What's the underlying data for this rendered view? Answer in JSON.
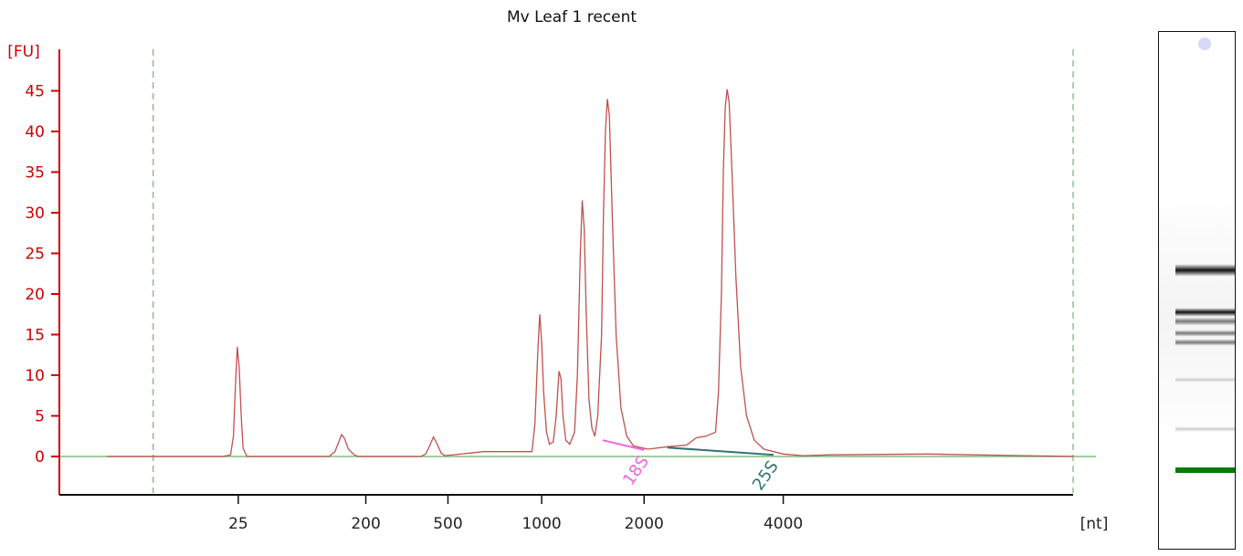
{
  "chart_data": {
    "type": "line",
    "title": "Mv Leaf 1 recent",
    "ylabel": "[FU]",
    "xlabel": "[nt]",
    "ylim": [
      -5,
      49
    ],
    "yticks": [
      0,
      5,
      10,
      15,
      20,
      25,
      30,
      35,
      40,
      45
    ],
    "xticks": [
      {
        "label": "25",
        "frac": 0.136
      },
      {
        "label": "200",
        "frac": 0.268
      },
      {
        "label": "500",
        "frac": 0.353
      },
      {
        "label": "1000",
        "frac": 0.45
      },
      {
        "label": "2000",
        "frac": 0.556
      },
      {
        "label": "4000",
        "frac": 0.7
      }
    ],
    "grid": false,
    "markers": [
      {
        "name": "lower-marker",
        "frac": 0.048
      },
      {
        "name": "upper-marker",
        "frac": 1.0
      }
    ],
    "annotations": [
      {
        "label": "18S",
        "color": "#ee66dd",
        "start_frac": 0.513,
        "end_frac": 0.556,
        "y_start": 2.0,
        "y_end": 0.8
      },
      {
        "label": "25S",
        "color": "#2e7474",
        "start_frac": 0.58,
        "end_frac": 0.69,
        "y_start": 1.1,
        "y_end": 0.2
      }
    ],
    "series": [
      {
        "color": "#c0504d",
        "points": [
          [
            0.0,
            0.0
          ],
          [
            0.12,
            0.0
          ],
          [
            0.128,
            0.2
          ],
          [
            0.131,
            2.5
          ],
          [
            0.133,
            8.5
          ],
          [
            0.135,
            13.5
          ],
          [
            0.137,
            11.0
          ],
          [
            0.139,
            5.0
          ],
          [
            0.141,
            1.0
          ],
          [
            0.145,
            0.0
          ],
          [
            0.23,
            0.0
          ],
          [
            0.236,
            0.6
          ],
          [
            0.24,
            1.8
          ],
          [
            0.243,
            2.7
          ],
          [
            0.246,
            2.2
          ],
          [
            0.25,
            0.9
          ],
          [
            0.256,
            0.2
          ],
          [
            0.26,
            0.0
          ],
          [
            0.325,
            0.0
          ],
          [
            0.33,
            0.3
          ],
          [
            0.334,
            1.3
          ],
          [
            0.338,
            2.4
          ],
          [
            0.342,
            1.5
          ],
          [
            0.346,
            0.4
          ],
          [
            0.35,
            0.1
          ],
          [
            0.39,
            0.6
          ],
          [
            0.44,
            0.6
          ],
          [
            0.443,
            4.0
          ],
          [
            0.446,
            13.0
          ],
          [
            0.448,
            17.5
          ],
          [
            0.45,
            14.0
          ],
          [
            0.452,
            8.0
          ],
          [
            0.455,
            3.0
          ],
          [
            0.458,
            1.5
          ],
          [
            0.462,
            1.8
          ],
          [
            0.465,
            5.0
          ],
          [
            0.468,
            10.5
          ],
          [
            0.47,
            9.5
          ],
          [
            0.472,
            5.0
          ],
          [
            0.475,
            2.0
          ],
          [
            0.479,
            1.5
          ],
          [
            0.484,
            3.0
          ],
          [
            0.487,
            10.0
          ],
          [
            0.49,
            25.0
          ],
          [
            0.492,
            31.5
          ],
          [
            0.494,
            28.0
          ],
          [
            0.496,
            18.0
          ],
          [
            0.499,
            7.0
          ],
          [
            0.502,
            3.5
          ],
          [
            0.505,
            2.5
          ],
          [
            0.508,
            5.0
          ],
          [
            0.512,
            15.0
          ],
          [
            0.514,
            30.0
          ],
          [
            0.516,
            40.0
          ],
          [
            0.518,
            44.0
          ],
          [
            0.52,
            42.0
          ],
          [
            0.523,
            30.0
          ],
          [
            0.527,
            15.0
          ],
          [
            0.532,
            6.0
          ],
          [
            0.538,
            2.5
          ],
          [
            0.545,
            1.3
          ],
          [
            0.56,
            0.9
          ],
          [
            0.58,
            1.2
          ],
          [
            0.6,
            1.4
          ],
          [
            0.61,
            2.3
          ],
          [
            0.62,
            2.5
          ],
          [
            0.63,
            3.0
          ],
          [
            0.633,
            8.0
          ],
          [
            0.636,
            20.0
          ],
          [
            0.638,
            35.0
          ],
          [
            0.64,
            43.0
          ],
          [
            0.642,
            45.2
          ],
          [
            0.644,
            43.5
          ],
          [
            0.647,
            35.0
          ],
          [
            0.651,
            22.0
          ],
          [
            0.656,
            11.0
          ],
          [
            0.662,
            5.0
          ],
          [
            0.67,
            2.0
          ],
          [
            0.68,
            0.9
          ],
          [
            0.7,
            0.3
          ],
          [
            0.72,
            0.1
          ],
          [
            0.75,
            0.2
          ],
          [
            0.85,
            0.3
          ],
          [
            0.95,
            0.1
          ],
          [
            1.0,
            0.0
          ]
        ]
      }
    ]
  }
}
